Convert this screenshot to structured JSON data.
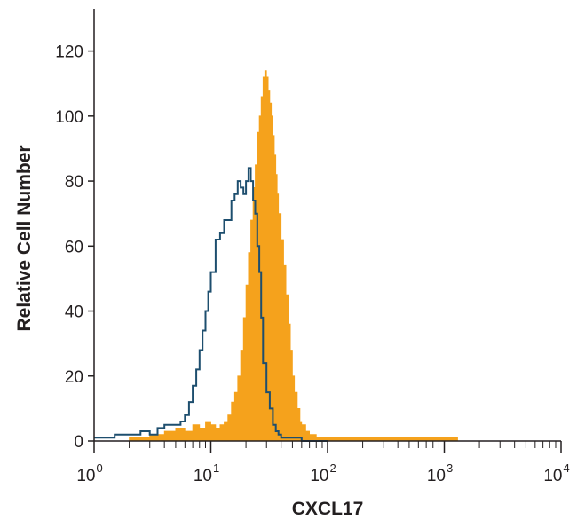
{
  "chart_data": {
    "type": "area",
    "title": "",
    "xlabel": "CXCL17",
    "ylabel": "Relative Cell Number",
    "x_scale": "log",
    "xlim": [
      1,
      10000
    ],
    "ylim": [
      0,
      133
    ],
    "x_ticks": [
      {
        "base": "10",
        "exp": "0",
        "value": 1
      },
      {
        "base": "10",
        "exp": "1",
        "value": 10
      },
      {
        "base": "10",
        "exp": "2",
        "value": 100
      },
      {
        "base": "10",
        "exp": "3",
        "value": 1000
      },
      {
        "base": "10",
        "exp": "4",
        "value": 10000
      }
    ],
    "y_ticks": [
      0,
      20,
      40,
      60,
      80,
      100,
      120
    ],
    "grid": false,
    "legend": "none",
    "series": [
      {
        "style": "filled",
        "color": "#f5a21c",
        "x": [
          1,
          2,
          3,
          3.5,
          4,
          5,
          6,
          7,
          8,
          9,
          10,
          11,
          12,
          13,
          14,
          15,
          16,
          17,
          18,
          19,
          20,
          21,
          22,
          23,
          24,
          25,
          26,
          27,
          28,
          29,
          30,
          31,
          32,
          33,
          34,
          35,
          36,
          37,
          38,
          40,
          42,
          44,
          46,
          48,
          50,
          52,
          55,
          58,
          60,
          65,
          70,
          80,
          100,
          150,
          200,
          300,
          500,
          800,
          1000,
          1200,
          1300,
          10000
        ],
        "y": [
          0,
          1,
          2,
          2,
          3,
          4,
          3,
          5,
          4,
          6,
          5,
          4,
          5,
          6,
          8,
          12,
          15,
          20,
          28,
          38,
          48,
          58,
          68,
          78,
          85,
          95,
          100,
          106,
          112,
          114,
          112,
          108,
          104,
          100,
          94,
          88,
          82,
          76,
          70,
          62,
          54,
          45,
          36,
          28,
          20,
          15,
          10,
          6,
          5,
          3,
          2,
          1,
          1,
          1,
          1,
          1,
          1,
          1,
          1,
          1,
          0,
          0
        ]
      },
      {
        "style": "outline",
        "color": "#1d4e6e",
        "x": [
          1,
          1.5,
          2,
          2.5,
          3,
          3.5,
          4,
          4.5,
          5,
          5.5,
          6,
          6.5,
          7,
          7.5,
          8,
          8.5,
          9,
          9.5,
          10,
          11,
          12,
          13,
          14,
          15,
          16,
          17,
          18,
          19,
          20,
          21,
          22,
          23,
          24,
          25,
          26,
          27,
          28,
          30,
          32,
          34,
          36,
          38,
          40,
          45,
          50,
          60,
          70,
          80,
          100
        ],
        "y": [
          1,
          2,
          2,
          3,
          2,
          4,
          5,
          5,
          5,
          6,
          8,
          12,
          17,
          22,
          28,
          34,
          40,
          46,
          52,
          62,
          64,
          68,
          68,
          74,
          76,
          80,
          78,
          76,
          80,
          84,
          80,
          74,
          70,
          60,
          52,
          38,
          24,
          15,
          10,
          5,
          3,
          2,
          1,
          1,
          1,
          0,
          0,
          0,
          0
        ]
      }
    ]
  }
}
